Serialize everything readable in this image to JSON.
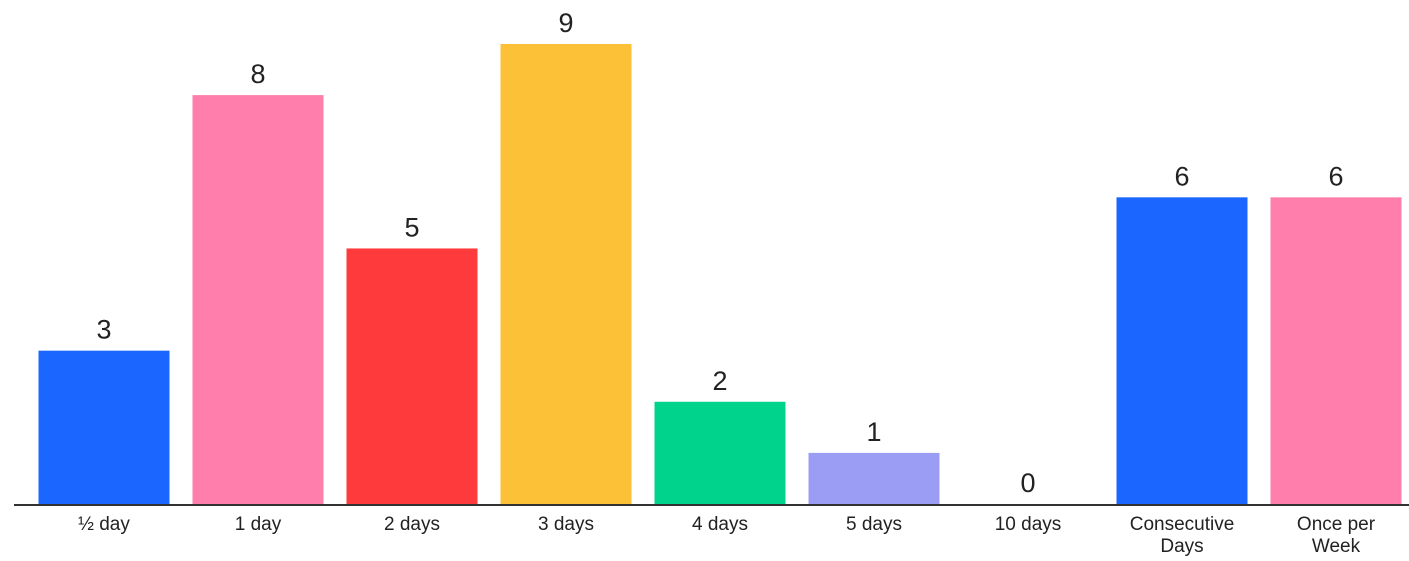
{
  "chart_data": {
    "type": "bar",
    "title": "",
    "xlabel": "",
    "ylabel": "",
    "ylim": [
      0,
      9
    ],
    "grid": false,
    "legend": "none",
    "show_value_labels": true,
    "categories": [
      [
        "½ day"
      ],
      [
        "1 day"
      ],
      [
        "2 days"
      ],
      [
        "3 days"
      ],
      [
        "4 days"
      ],
      [
        "5 days"
      ],
      [
        "10 days"
      ],
      [
        "Consecutive",
        "Days"
      ],
      [
        "Once per",
        "Week"
      ]
    ],
    "values": [
      3,
      8,
      5,
      9,
      2,
      1,
      0,
      6,
      6
    ],
    "colors": [
      "#1a66ff",
      "#ff7eab",
      "#ff3a3d",
      "#fcc136",
      "#00d48c",
      "#9b9cf4",
      "#1a66ff",
      "#1a66ff",
      "#ff7eab"
    ],
    "axis_color": "#333333"
  }
}
